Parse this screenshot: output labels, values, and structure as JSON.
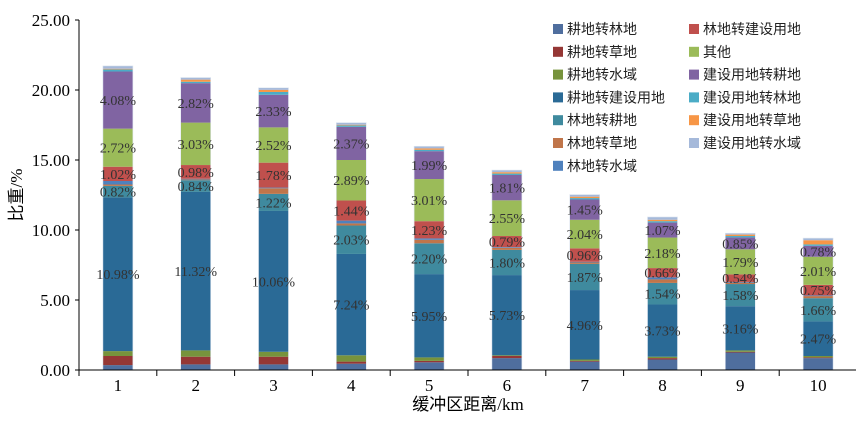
{
  "chart_data": {
    "type": "bar",
    "stacked": true,
    "title": "",
    "xlabel": "缓冲区距离/km",
    "ylabel": "比重/%",
    "ylim": [
      0,
      25
    ],
    "yticks": [
      "0.00",
      "5.00",
      "10.00",
      "15.00",
      "20.00",
      "25.00"
    ],
    "ytick_values": [
      0,
      5,
      10,
      15,
      20,
      25
    ],
    "categories": [
      "1",
      "2",
      "3",
      "4",
      "5",
      "6",
      "7",
      "8",
      "9",
      "10"
    ],
    "legend_position": "top-right",
    "series": [
      {
        "name": "耕地转林地",
        "color": "#4F6E9E",
        "values": [
          0.35,
          0.4,
          0.4,
          0.45,
          0.55,
          0.85,
          0.6,
          0.75,
          1.25,
          0.85
        ]
      },
      {
        "name": "耕地转草地",
        "color": "#953735",
        "values": [
          0.65,
          0.55,
          0.55,
          0.15,
          0.1,
          0.15,
          0.05,
          0.1,
          0.05,
          0.05
        ]
      },
      {
        "name": "耕地转水域",
        "color": "#77933C",
        "values": [
          0.35,
          0.45,
          0.35,
          0.45,
          0.25,
          0.05,
          0.1,
          0.1,
          0.1,
          0.1
        ]
      },
      {
        "name": "耕地转建设用地",
        "color": "#2A6A96",
        "values": [
          10.98,
          11.32,
          10.06,
          7.24,
          5.95,
          5.73,
          4.96,
          3.73,
          3.16,
          2.47
        ],
        "labels": [
          "10.98%",
          "11.32%",
          "10.06%",
          "7.24%",
          "5.95%",
          "5.73%",
          "4.96%",
          "3.73%",
          "3.16%",
          "2.47%"
        ]
      },
      {
        "name": "林地转耕地",
        "color": "#3F8A9E",
        "values": [
          0.82,
          0.84,
          1.22,
          2.03,
          2.2,
          1.8,
          1.87,
          1.54,
          1.58,
          1.66
        ],
        "labels": [
          "0.82%",
          "0.84%",
          "1.22%",
          "2.03%",
          "2.20%",
          "1.80%",
          "1.87%",
          "1.54%",
          "1.58%",
          "1.66%"
        ]
      },
      {
        "name": "林地转草地",
        "color": "#C0754A",
        "values": [
          0.1,
          0.05,
          0.4,
          0.15,
          0.25,
          0.15,
          0.1,
          0.25,
          0.1,
          0.15
        ]
      },
      {
        "name": "林地转水域",
        "color": "#4F81BD",
        "values": [
          0.25,
          0.05,
          0.05,
          0.2,
          0.1,
          0.05,
          0.05,
          0.15,
          0.05,
          0.05
        ]
      },
      {
        "name": "林地转建设用地",
        "color": "#C0504D",
        "values": [
          1.02,
          0.98,
          1.78,
          1.44,
          1.23,
          0.79,
          0.96,
          0.66,
          0.54,
          0.75
        ],
        "labels": [
          "1.02%",
          "0.98%",
          "1.78%",
          "1.44%",
          "1.23%",
          "0.79%",
          "0.96%",
          "0.66%",
          "0.54%",
          "0.75%"
        ]
      },
      {
        "name": "其他",
        "color": "#9BBB59",
        "values": [
          2.72,
          3.03,
          2.52,
          2.89,
          3.01,
          2.55,
          2.04,
          2.18,
          1.79,
          2.01
        ],
        "labels": [
          "2.72%",
          "3.03%",
          "2.52%",
          "2.89%",
          "3.01%",
          "2.55%",
          "2.04%",
          "2.18%",
          "1.79%",
          "2.01%"
        ]
      },
      {
        "name": "建设用地转耕地",
        "color": "#8064A2",
        "values": [
          4.08,
          2.82,
          2.33,
          2.37,
          1.99,
          1.81,
          1.45,
          1.07,
          0.85,
          0.78
        ],
        "labels": [
          "4.08%",
          "2.82%",
          "2.33%",
          "2.37%",
          "1.99%",
          "1.81%",
          "1.45%",
          "1.07%",
          "0.85%",
          "0.78%"
        ]
      },
      {
        "name": "建设用地转林地",
        "color": "#4BACC6",
        "values": [
          0.15,
          0.1,
          0.2,
          0.1,
          0.1,
          0.1,
          0.1,
          0.1,
          0.1,
          0.1
        ]
      },
      {
        "name": "建设用地转草地",
        "color": "#F79646",
        "values": [
          0.05,
          0.15,
          0.15,
          0.05,
          0.1,
          0.1,
          0.1,
          0.1,
          0.1,
          0.3
        ]
      },
      {
        "name": "建设用地转水域",
        "color": "#A5B9DA",
        "values": [
          0.2,
          0.15,
          0.15,
          0.15,
          0.15,
          0.15,
          0.15,
          0.2,
          0.1,
          0.15
        ]
      }
    ],
    "legend_order": [
      0,
      7,
      1,
      8,
      2,
      9,
      3,
      10,
      4,
      11,
      5,
      12,
      6
    ]
  }
}
